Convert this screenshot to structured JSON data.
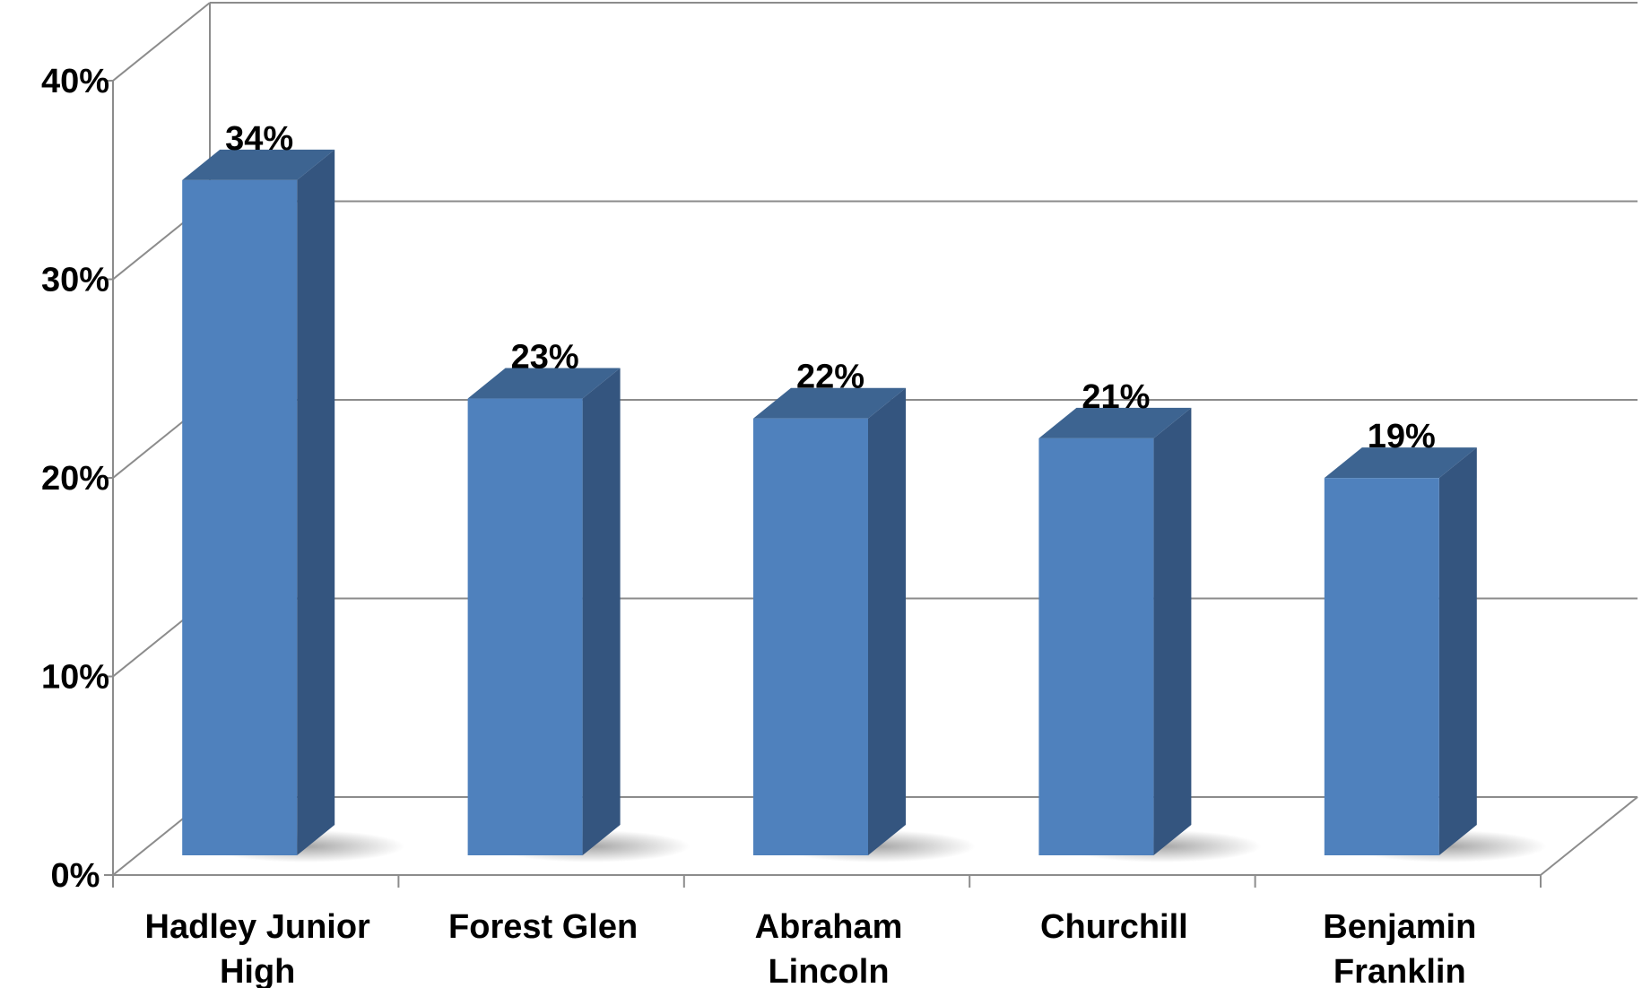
{
  "chart_data": {
    "type": "bar",
    "title": "",
    "xlabel": "",
    "ylabel": "",
    "categories": [
      [
        "Hadley Junior",
        "High"
      ],
      [
        "Forest Glen"
      ],
      [
        "Abraham",
        "Lincoln"
      ],
      [
        "Churchill"
      ],
      [
        "Benjamin",
        "Franklin"
      ]
    ],
    "values": [
      34,
      23,
      22,
      21,
      19
    ],
    "data_labels": [
      "34%",
      "23%",
      "22%",
      "21%",
      "19%"
    ],
    "ylim": [
      0,
      40
    ],
    "yticks": [
      0,
      10,
      20,
      30,
      40
    ],
    "ytick_labels": [
      "0%",
      "10%",
      "20%",
      "30%",
      "40%"
    ],
    "grid": true,
    "style": "3d-column",
    "colors": {
      "bar_front": "#4F81BD",
      "bar_side": "#34557F",
      "bar_top": "#3D6491",
      "grid": "#8C8C8C"
    }
  }
}
